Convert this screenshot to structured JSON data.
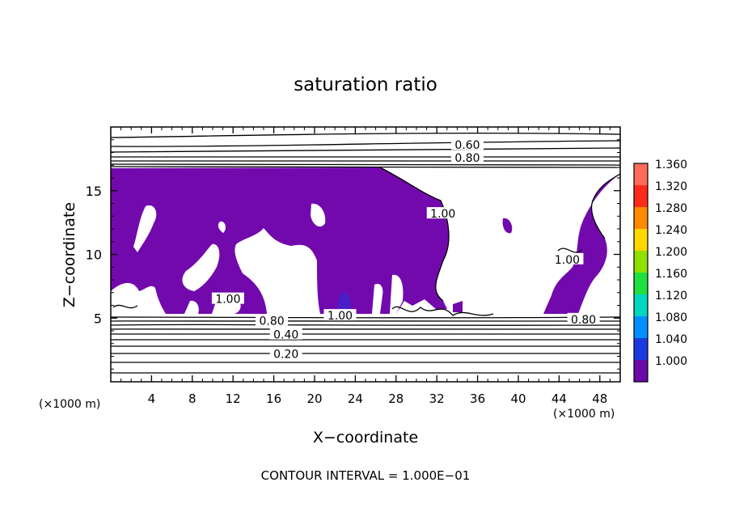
{
  "chart_data": {
    "type": "heatmap",
    "title": "saturation ratio",
    "xlabel": "X−coordinate",
    "ylabel": "Z−coordinate",
    "x_unit": "(×1000 m)",
    "z_unit": "(×1000 m)",
    "xlim": [
      0,
      50
    ],
    "ylim": [
      0,
      20
    ],
    "x_ticks": [
      "4",
      "8",
      "12",
      "16",
      "20",
      "24",
      "28",
      "32",
      "36",
      "40",
      "44",
      "48"
    ],
    "y_ticks": [
      "5",
      "10",
      "15"
    ],
    "colorbar": {
      "levels": [
        "1.360",
        "1.320",
        "1.280",
        "1.240",
        "1.200",
        "1.160",
        "1.120",
        "1.080",
        "1.040",
        "1.000"
      ],
      "colors": [
        "#ff6a5a",
        "#ff2a1a",
        "#ff8a00",
        "#ffd800",
        "#90e000",
        "#20e040",
        "#00d6c0",
        "#0090ff",
        "#1a3adf",
        "#6c0aa8"
      ]
    },
    "fill_color": "#7209ad",
    "contour_labels": [
      {
        "text": "0.60",
        "x": 35,
        "z": 18.6
      },
      {
        "text": "0.80",
        "x": 35,
        "z": 17.6
      },
      {
        "text": "0.80",
        "x": 15.8,
        "z": 4.8
      },
      {
        "text": "1.00",
        "x": 22.5,
        "z": 5.2
      },
      {
        "text": "0.40",
        "x": 17.2,
        "z": 3.7
      },
      {
        "text": "0.20",
        "x": 17.2,
        "z": 2.2
      },
      {
        "text": "0.80",
        "x": 46.4,
        "z": 4.9
      },
      {
        "text": "1.00",
        "x": 32.6,
        "z": 13.2
      },
      {
        "text": "1.00",
        "x": 11.5,
        "z": 6.5
      },
      {
        "text": "1.00",
        "x": 44.8,
        "z": 9.6
      }
    ],
    "footer": "CONTOUR INTERVAL = 1.000E−01"
  }
}
